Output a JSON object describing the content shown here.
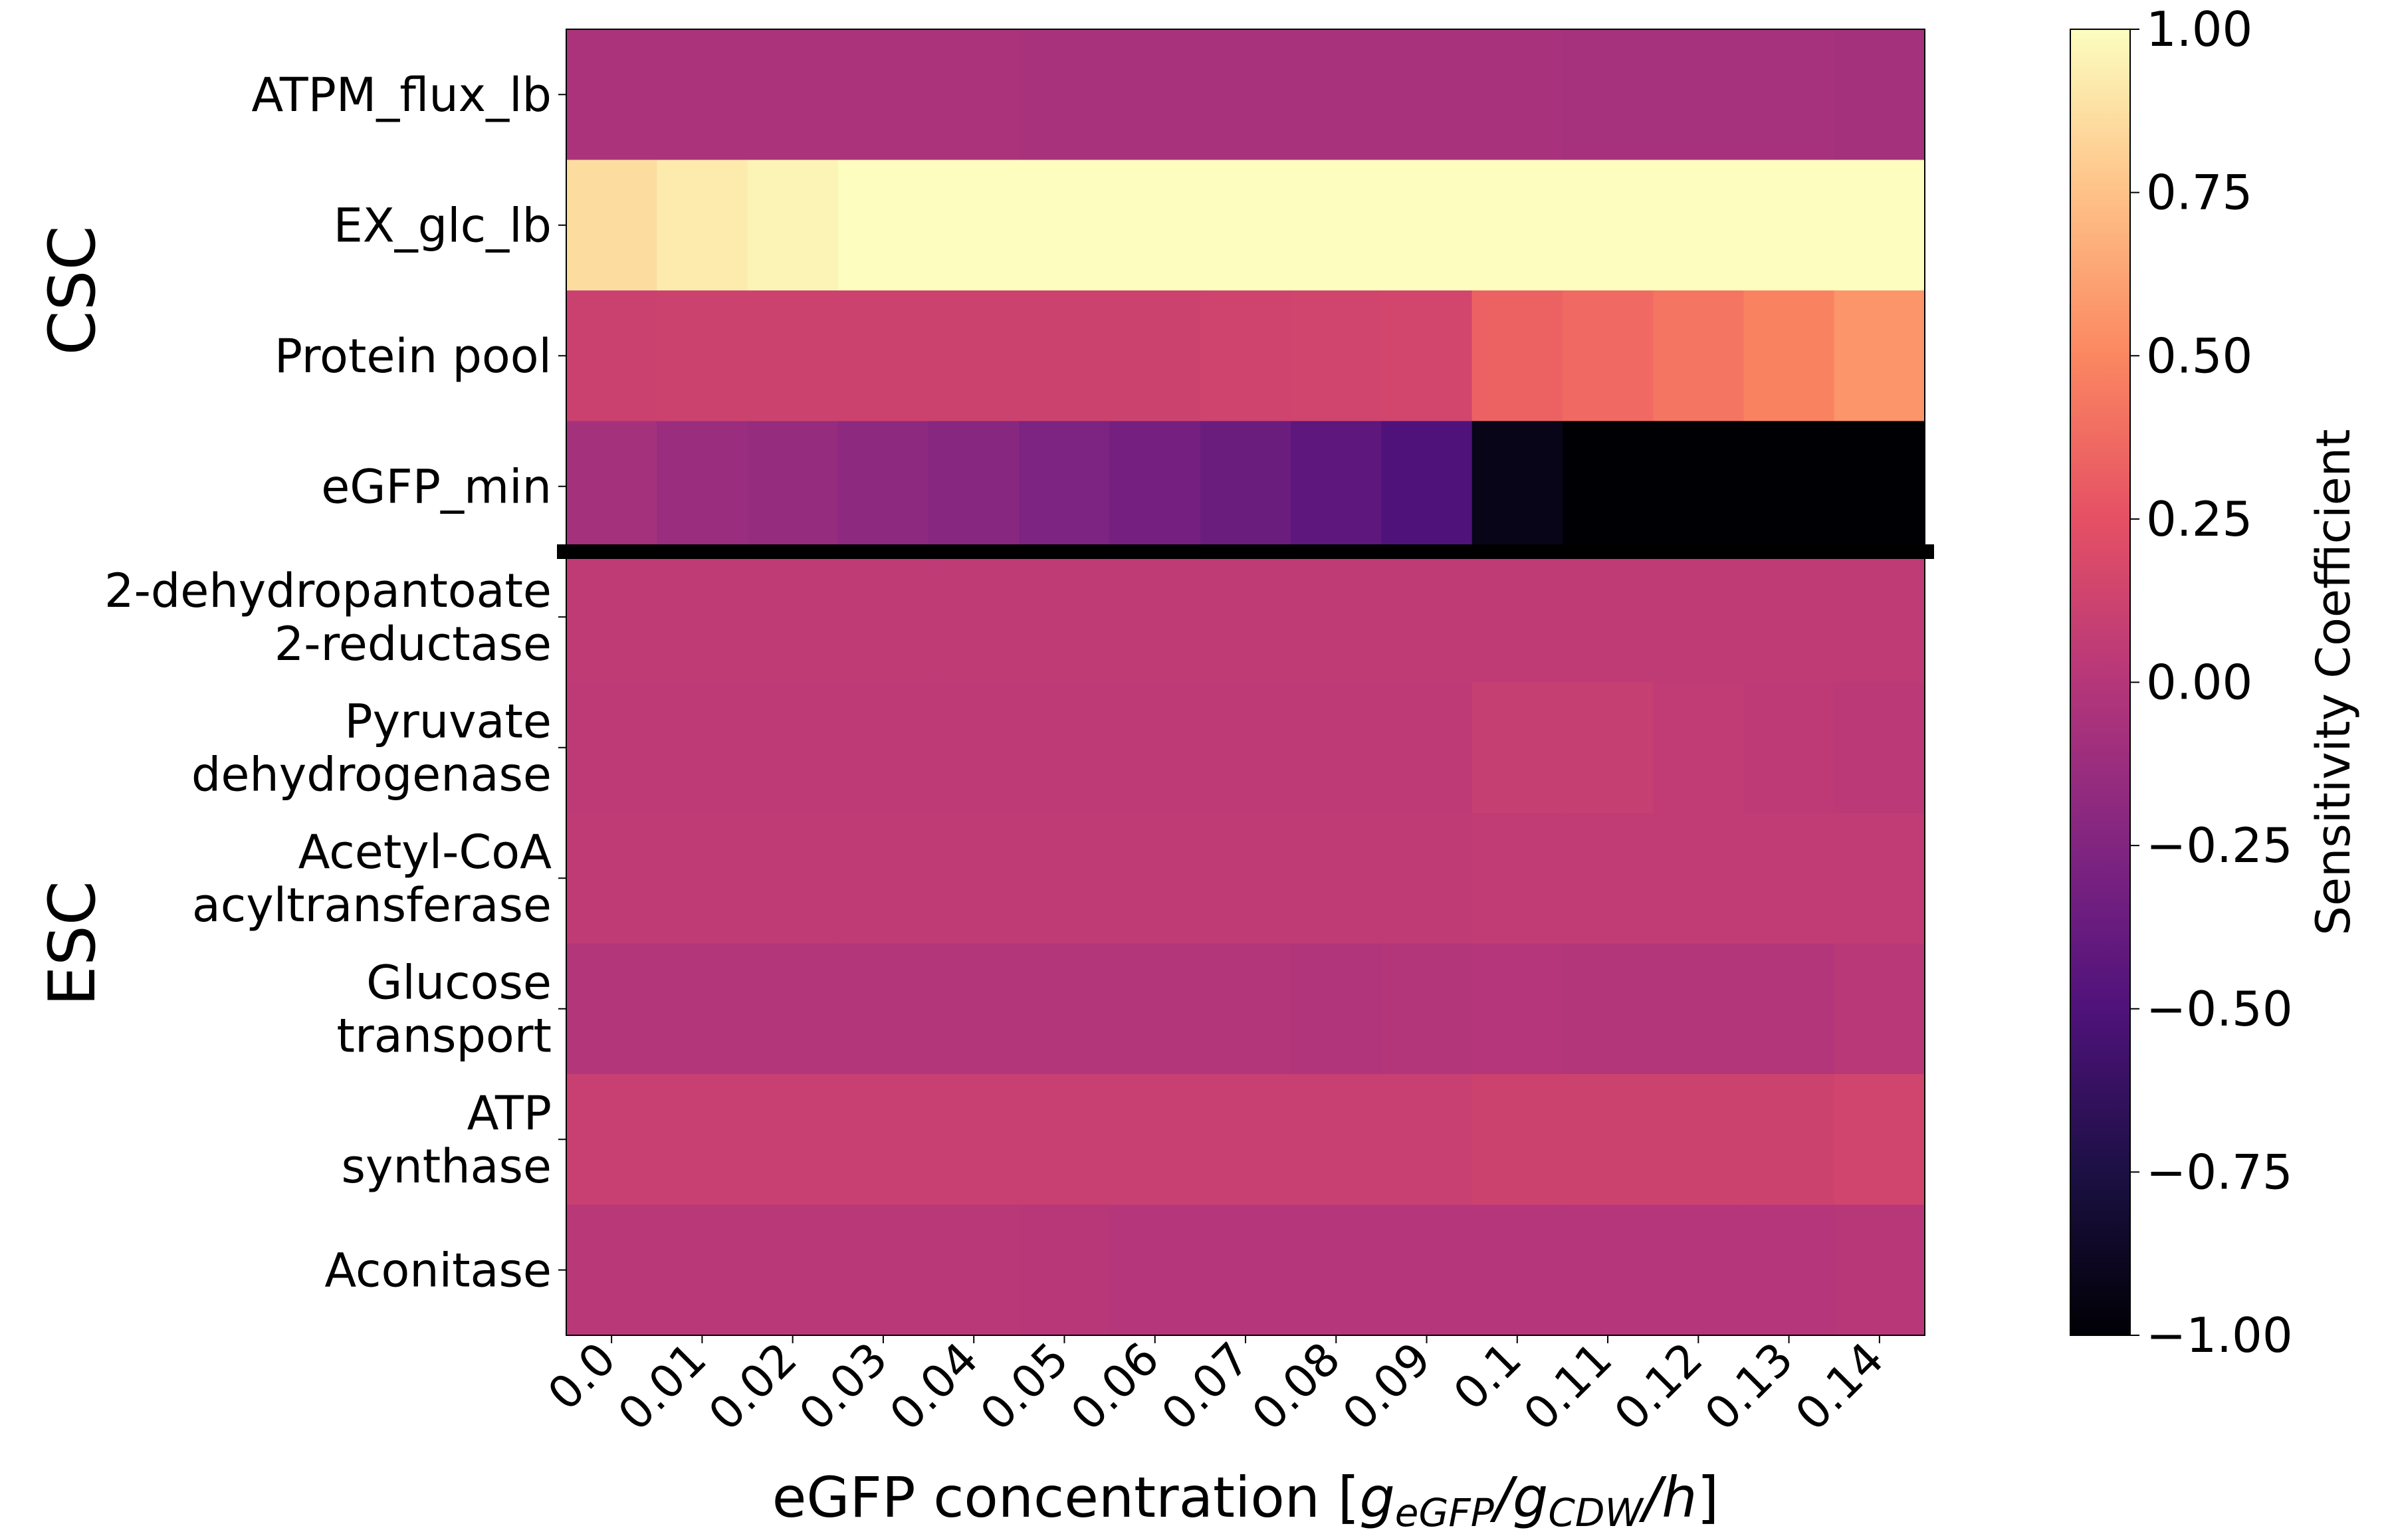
{
  "chart_data": {
    "type": "heatmap",
    "xlabel_main": "eGFP concentration [",
    "xlabel_g1": "g",
    "xlabel_sub1": "eGFP",
    "xlabel_slash": "/",
    "xlabel_g2": "g",
    "xlabel_sub2": "CDW",
    "xlabel_h": "h",
    "xlabel_close": "]",
    "colorbar_label": "Sensitivity Coefficient",
    "colormap": "magma",
    "vlim": [
      -1.0,
      1.0
    ],
    "colorbar_ticks": [
      "−1.00",
      "−0.75",
      "−0.50",
      "−0.25",
      "0.00",
      "0.25",
      "0.50",
      "0.75",
      "1.00"
    ],
    "x_ticks": [
      "0.0",
      "0.01",
      "0.02",
      "0.03",
      "0.04",
      "0.05",
      "0.06",
      "0.07",
      "0.08",
      "0.09",
      "0.1",
      "0.11",
      "0.12",
      "0.13",
      "0.14"
    ],
    "groups": [
      {
        "label": "CSC",
        "rows": [
          0,
          1,
          2,
          3
        ]
      },
      {
        "label": "ESC",
        "rows": [
          4,
          5,
          6,
          7,
          8,
          9
        ]
      }
    ],
    "rows": [
      {
        "label": [
          "ATPM_flux_lb"
        ],
        "values": [
          -0.05,
          -0.05,
          -0.05,
          -0.05,
          -0.05,
          -0.06,
          -0.06,
          -0.06,
          -0.06,
          -0.06,
          -0.06,
          -0.07,
          -0.07,
          -0.07,
          -0.08
        ]
      },
      {
        "label": [
          "EX_glc_lb"
        ],
        "values": [
          0.86,
          0.92,
          0.96,
          1.0,
          1.0,
          1.0,
          1.0,
          1.0,
          1.0,
          1.0,
          1.0,
          1.0,
          1.0,
          1.0,
          1.0
        ]
      },
      {
        "label": [
          "Protein pool"
        ],
        "values": [
          0.11,
          0.12,
          0.12,
          0.12,
          0.12,
          0.12,
          0.12,
          0.13,
          0.14,
          0.15,
          0.33,
          0.37,
          0.42,
          0.48,
          0.56
        ]
      },
      {
        "label": [
          "eGFP_min"
        ],
        "values": [
          -0.08,
          -0.13,
          -0.15,
          -0.19,
          -0.22,
          -0.27,
          -0.31,
          -0.36,
          -0.43,
          -0.5,
          -0.92,
          -1.0,
          -1.0,
          -1.0,
          -1.0
        ]
      },
      {
        "label": [
          "2-dehydropantoate",
          "2-reductase"
        ],
        "values": [
          0.05,
          0.05,
          0.05,
          0.05,
          0.05,
          0.05,
          0.05,
          0.05,
          0.05,
          0.05,
          0.05,
          0.05,
          0.05,
          0.05,
          0.05
        ]
      },
      {
        "label": [
          "Pyruvate",
          "dehydrogenase"
        ],
        "values": [
          0.04,
          0.04,
          0.04,
          0.04,
          0.04,
          0.04,
          0.04,
          0.04,
          0.04,
          0.04,
          0.09,
          0.09,
          0.06,
          0.04,
          0.03
        ]
      },
      {
        "label": [
          "Acetyl-CoA",
          "acyltransferase"
        ],
        "values": [
          0.05,
          0.05,
          0.05,
          0.05,
          0.05,
          0.05,
          0.05,
          0.05,
          0.05,
          0.05,
          0.06,
          0.06,
          0.06,
          0.06,
          0.06
        ]
      },
      {
        "label": [
          "Glucose",
          "transport"
        ],
        "values": [
          -0.01,
          -0.01,
          -0.01,
          -0.01,
          -0.01,
          -0.01,
          -0.01,
          -0.01,
          -0.02,
          -0.01,
          0.0,
          -0.01,
          -0.01,
          -0.01,
          0.02
        ]
      },
      {
        "label": [
          "ATP",
          "synthase"
        ],
        "values": [
          0.1,
          0.1,
          0.1,
          0.1,
          0.1,
          0.1,
          0.1,
          0.1,
          0.1,
          0.1,
          0.12,
          0.12,
          0.12,
          0.12,
          0.14
        ]
      },
      {
        "label": [
          "Aconitase"
        ],
        "values": [
          0.02,
          0.02,
          0.02,
          0.02,
          0.02,
          0.01,
          0.0,
          0.0,
          0.0,
          0.0,
          0.0,
          0.0,
          0.0,
          0.0,
          0.01
        ]
      }
    ],
    "divider_after_row": 3
  }
}
